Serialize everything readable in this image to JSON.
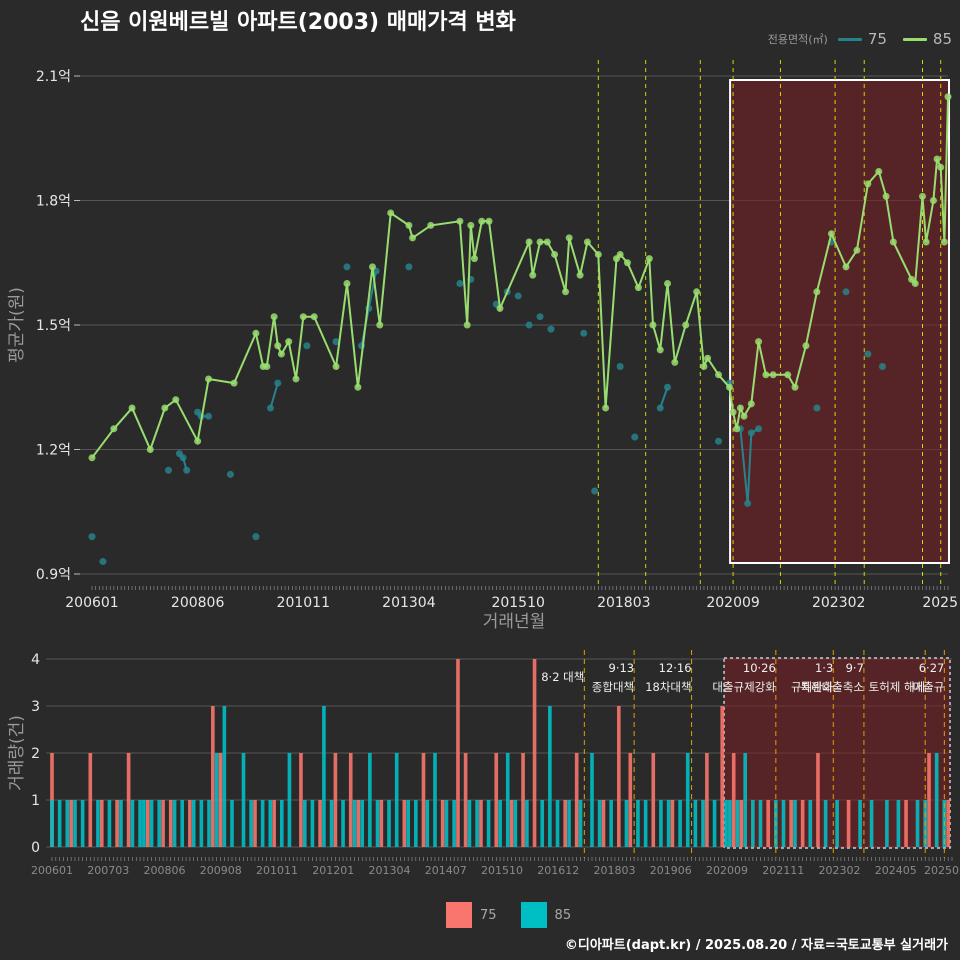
{
  "title": "신음 이원베르빌 아파트(2003) 매매가격 변화",
  "legend": {
    "caption": "전용면적(㎡)",
    "items": [
      {
        "label": "75",
        "color": "#27838b"
      },
      {
        "label": "85",
        "color": "#99dd70"
      }
    ]
  },
  "bar_legend": {
    "items": [
      {
        "label": "75",
        "color": "#f8766d"
      },
      {
        "label": "85",
        "color": "#00bfc4"
      }
    ]
  },
  "footer": "©디아파트(dapt.kr) / 2025.08.20 / 자료=국토교통부 실거래가",
  "chart_data": [
    {
      "type": "line",
      "xlabel": "거래년월",
      "ylabel": "평균가(원)",
      "ylim": [
        0.9,
        2.1
      ],
      "yticks": [
        0.9,
        1.2,
        1.5,
        1.8,
        2.1
      ],
      "ytick_labels": [
        "0.9억",
        "1.2억",
        "1.5억",
        "1.8억",
        "2.1억"
      ],
      "xticks": [
        "2006-01",
        "2008-06",
        "2010-11",
        "2013-04",
        "2015-10",
        "2018-03",
        "2020-09",
        "2023-02",
        "2025-08"
      ],
      "xtick_labels": [
        "200601",
        "200806",
        "201011",
        "201304",
        "201510",
        "201803",
        "202009",
        "202302",
        "2025"
      ],
      "grid": true,
      "legend_position": "top-right",
      "highlight_period": [
        "2020-09",
        "2025-08"
      ],
      "policy_dates": [
        "2017-08",
        "2018-09",
        "2019-12",
        "2020-09",
        "2021-10",
        "2023-01",
        "2023-09",
        "2025-01",
        "2025-06"
      ],
      "series": [
        {
          "name": "75",
          "color": "#27838b",
          "points": [
            [
              "2006-01",
              0.99
            ],
            [
              "2006-04",
              0.93
            ],
            [
              "2007-10",
              1.15
            ],
            [
              "2008-01",
              1.19
            ],
            [
              "2008-02",
              1.18
            ],
            [
              "2008-03",
              1.15
            ],
            [
              "2008-06",
              1.29
            ],
            [
              "2008-07",
              1.28
            ],
            [
              "2008-09",
              1.28
            ],
            [
              "2009-03",
              1.14
            ],
            [
              "2009-10",
              0.99
            ],
            [
              "2010-02",
              1.3
            ],
            [
              "2010-04",
              1.36
            ],
            [
              "2010-12",
              1.45
            ],
            [
              "2011-08",
              1.46
            ],
            [
              "2011-11",
              1.64
            ],
            [
              "2012-03",
              1.45
            ],
            [
              "2012-05",
              1.54
            ],
            [
              "2012-07",
              1.63
            ],
            [
              "2013-04",
              1.64
            ],
            [
              "2014-06",
              1.6
            ],
            [
              "2014-09",
              1.61
            ],
            [
              "2015-04",
              1.55
            ],
            [
              "2015-07",
              1.58
            ],
            [
              "2015-10",
              1.57
            ],
            [
              "2016-01",
              1.5
            ],
            [
              "2016-04",
              1.52
            ],
            [
              "2016-07",
              1.49
            ],
            [
              "2017-04",
              1.48
            ],
            [
              "2017-07",
              1.1
            ],
            [
              "2018-02",
              1.4
            ],
            [
              "2018-06",
              1.23
            ],
            [
              "2019-01",
              1.3
            ],
            [
              "2019-03",
              1.35
            ],
            [
              "2020-05",
              1.22
            ],
            [
              "2020-08",
              1.36
            ],
            [
              "2020-11",
              1.25
            ],
            [
              "2021-01",
              1.07
            ],
            [
              "2021-02",
              1.24
            ],
            [
              "2021-04",
              1.25
            ],
            [
              "2022-08",
              1.3
            ],
            [
              "2022-12",
              1.7
            ],
            [
              "2023-04",
              1.58
            ],
            [
              "2023-10",
              1.43
            ],
            [
              "2024-02",
              1.4
            ]
          ]
        },
        {
          "name": "85",
          "color": "#99dd70",
          "points": [
            [
              "2006-01",
              1.18
            ],
            [
              "2006-07",
              1.25
            ],
            [
              "2006-12",
              1.3
            ],
            [
              "2007-05",
              1.2
            ],
            [
              "2007-09",
              1.3
            ],
            [
              "2007-12",
              1.32
            ],
            [
              "2008-06",
              1.22
            ],
            [
              "2008-09",
              1.37
            ],
            [
              "2009-04",
              1.36
            ],
            [
              "2009-10",
              1.48
            ],
            [
              "2009-12",
              1.4
            ],
            [
              "2010-01",
              1.4
            ],
            [
              "2010-03",
              1.52
            ],
            [
              "2010-04",
              1.45
            ],
            [
              "2010-05",
              1.43
            ],
            [
              "2010-07",
              1.46
            ],
            [
              "2010-09",
              1.37
            ],
            [
              "2010-11",
              1.52
            ],
            [
              "2011-02",
              1.52
            ],
            [
              "2011-08",
              1.4
            ],
            [
              "2011-11",
              1.6
            ],
            [
              "2012-02",
              1.35
            ],
            [
              "2012-06",
              1.64
            ],
            [
              "2012-08",
              1.5
            ],
            [
              "2012-11",
              1.77
            ],
            [
              "2013-04",
              1.74
            ],
            [
              "2013-05",
              1.71
            ],
            [
              "2013-10",
              1.74
            ],
            [
              "2014-06",
              1.75
            ],
            [
              "2014-08",
              1.5
            ],
            [
              "2014-09",
              1.74
            ],
            [
              "2014-10",
              1.66
            ],
            [
              "2014-12",
              1.75
            ],
            [
              "2015-02",
              1.75
            ],
            [
              "2015-05",
              1.54
            ],
            [
              "2016-01",
              1.7
            ],
            [
              "2016-02",
              1.62
            ],
            [
              "2016-04",
              1.7
            ],
            [
              "2016-06",
              1.7
            ],
            [
              "2016-08",
              1.67
            ],
            [
              "2016-11",
              1.58
            ],
            [
              "2016-12",
              1.71
            ],
            [
              "2017-03",
              1.62
            ],
            [
              "2017-05",
              1.7
            ],
            [
              "2017-08",
              1.67
            ],
            [
              "2017-10",
              1.3
            ],
            [
              "2018-01",
              1.66
            ],
            [
              "2018-02",
              1.67
            ],
            [
              "2018-04",
              1.65
            ],
            [
              "2018-07",
              1.59
            ],
            [
              "2018-10",
              1.66
            ],
            [
              "2018-11",
              1.5
            ],
            [
              "2019-01",
              1.44
            ],
            [
              "2019-03",
              1.6
            ],
            [
              "2019-05",
              1.41
            ],
            [
              "2019-08",
              1.5
            ],
            [
              "2019-11",
              1.58
            ],
            [
              "2020-01",
              1.4
            ],
            [
              "2020-02",
              1.42
            ],
            [
              "2020-05",
              1.38
            ],
            [
              "2020-08",
              1.35
            ],
            [
              "2020-09",
              1.29
            ],
            [
              "2020-10",
              1.25
            ],
            [
              "2020-11",
              1.3
            ],
            [
              "2020-12",
              1.28
            ],
            [
              "2021-02",
              1.31
            ],
            [
              "2021-04",
              1.46
            ],
            [
              "2021-06",
              1.38
            ],
            [
              "2021-08",
              1.38
            ],
            [
              "2021-12",
              1.38
            ],
            [
              "2022-02",
              1.35
            ],
            [
              "2022-05",
              1.45
            ],
            [
              "2022-08",
              1.58
            ],
            [
              "2022-12",
              1.72
            ],
            [
              "2023-04",
              1.64
            ],
            [
              "2023-07",
              1.68
            ],
            [
              "2023-10",
              1.84
            ],
            [
              "2024-01",
              1.87
            ],
            [
              "2024-03",
              1.81
            ],
            [
              "2024-05",
              1.7
            ],
            [
              "2024-10",
              1.61
            ],
            [
              "2024-11",
              1.6
            ],
            [
              "2025-01",
              1.81
            ],
            [
              "2025-02",
              1.7
            ],
            [
              "2025-04",
              1.8
            ],
            [
              "2025-05",
              1.9
            ],
            [
              "2025-06",
              1.88
            ],
            [
              "2025-07",
              1.7
            ],
            [
              "2025-08",
              2.05
            ]
          ]
        }
      ]
    },
    {
      "type": "bar",
      "ylabel": "거래량(건)",
      "ylim": [
        0,
        4
      ],
      "yticks": [
        0,
        1,
        2,
        3,
        4
      ],
      "xtick_labels": [
        "200601",
        "200703",
        "200806",
        "200908",
        "201011",
        "201201",
        "201304",
        "201407",
        "201510",
        "201612",
        "201803",
        "201906",
        "202009",
        "202111",
        "202302",
        "202405",
        "20250"
      ],
      "highlight_period": [
        "2020-09",
        "2025-08"
      ],
      "annotations": [
        {
          "date": "2017-08",
          "lines": [
            "8·2 대책"
          ]
        },
        {
          "date": "2018-09",
          "lines": [
            "9·13",
            "종합대책"
          ]
        },
        {
          "date": "2019-12",
          "lines": [
            "12·16",
            "18차대책"
          ]
        },
        {
          "date": "2021-10",
          "lines": [
            "10·26",
            "대출규제강화"
          ]
        },
        {
          "date": "2023-01",
          "lines": [
            "1·3",
            "규제완화"
          ]
        },
        {
          "date": "2023-09",
          "lines": [
            "9·7",
            "특례대출축소"
          ]
        },
        {
          "date": "2025-01",
          "lines": [
            "",
            "토허제 해제"
          ]
        },
        {
          "date": "2025-06",
          "lines": [
            "6·27",
            "대출규"
          ]
        }
      ],
      "series": [
        {
          "name": "75",
          "color": "#f8766d",
          "counts": {
            "2006-01": 2,
            "2006-06": 1,
            "2006-11": 2,
            "2007-02": 1,
            "2007-06": 1,
            "2007-09": 2,
            "2008-02": 1,
            "2008-06": 1,
            "2008-08": 1,
            "2009-01": 1,
            "2009-07": 3,
            "2009-09": 2,
            "2010-06": 1,
            "2010-11": 1,
            "2011-06": 2,
            "2011-11": 1,
            "2012-03": 2,
            "2012-07": 2,
            "2012-09": 1,
            "2013-03": 1,
            "2013-09": 1,
            "2014-02": 2,
            "2014-07": 1,
            "2014-11": 4,
            "2015-01": 2,
            "2015-05": 1,
            "2015-09": 2,
            "2016-01": 1,
            "2016-04": 2,
            "2016-07": 4,
            "2017-03": 1,
            "2017-06": 2,
            "2018-01": 1,
            "2018-05": 3,
            "2018-08": 2,
            "2019-02": 2,
            "2019-07": 1,
            "2020-04": 2,
            "2020-08": 3,
            "2020-11": 2,
            "2021-01": 1,
            "2021-08": 1,
            "2022-02": 1,
            "2022-05": 1,
            "2022-09": 2,
            "2023-05": 1,
            "2024-08": 1,
            "2025-02": 2,
            "2025-07": 1
          }
        },
        {
          "name": "85",
          "color": "#00bfc4",
          "counts": {
            "2006-01": 1,
            "2006-03": 1,
            "2006-05": 1,
            "2006-07": 1,
            "2006-09": 1,
            "2007-01": 1,
            "2007-04": 1,
            "2007-07": 1,
            "2007-10": 1,
            "2007-12": 1,
            "2008-01": 1,
            "2008-03": 1,
            "2008-05": 1,
            "2008-09": 1,
            "2008-11": 1,
            "2009-02": 1,
            "2009-04": 1,
            "2009-06": 1,
            "2009-08": 2,
            "2009-10": 3,
            "2009-12": 1,
            "2010-03": 2,
            "2010-05": 1,
            "2010-08": 1,
            "2010-10": 1,
            "2011-01": 1,
            "2011-03": 2,
            "2011-07": 1,
            "2011-09": 1,
            "2011-12": 3,
            "2012-02": 1,
            "2012-05": 1,
            "2012-08": 1,
            "2012-10": 1,
            "2012-12": 2,
            "2013-02": 1,
            "2013-05": 1,
            "2013-07": 2,
            "2013-10": 1,
            "2013-12": 1,
            "2014-03": 1,
            "2014-05": 2,
            "2014-08": 1,
            "2014-10": 1,
            "2015-02": 1,
            "2015-04": 1,
            "2015-07": 1,
            "2015-10": 1,
            "2015-12": 2,
            "2016-02": 1,
            "2016-05": 1,
            "2016-09": 1,
            "2016-11": 3,
            "2017-01": 1,
            "2017-04": 1,
            "2017-07": 1,
            "2017-10": 2,
            "2017-12": 1,
            "2018-03": 1,
            "2018-07": 1,
            "2018-10": 1,
            "2018-12": 1,
            "2019-04": 1,
            "2019-06": 1,
            "2019-09": 1,
            "2019-11": 2,
            "2020-01": 1,
            "2020-03": 1,
            "2020-06": 1,
            "2020-09": 1,
            "2020-10": 1,
            "2020-12": 1,
            "2021-02": 2,
            "2021-04": 1,
            "2021-06": 1,
            "2021-10": 1,
            "2021-12": 1,
            "2022-03": 1,
            "2022-07": 1,
            "2022-11": 1,
            "2023-02": 1,
            "2023-08": 1,
            "2023-11": 1,
            "2024-03": 1,
            "2024-06": 1,
            "2024-11": 1,
            "2025-01": 1,
            "2025-04": 2,
            "2025-06": 1
          }
        }
      ]
    }
  ]
}
